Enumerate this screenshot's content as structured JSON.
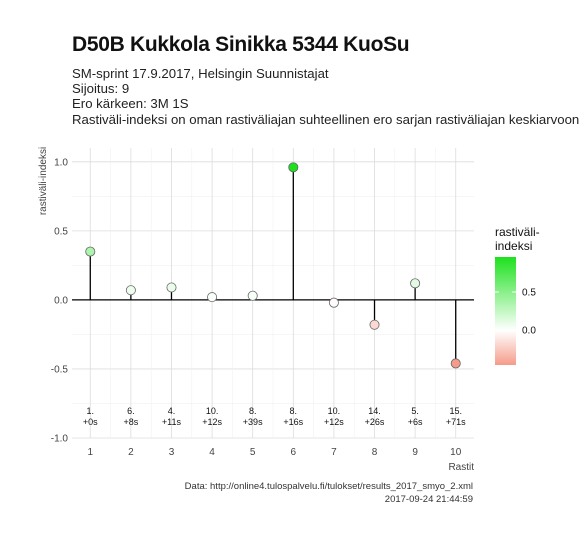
{
  "chart_data": {
    "type": "lollipop",
    "title": "D50B Kukkola Sinikka 5344 KuoSu",
    "subtitle_lines": [
      "SM-sprint 17.9.2017, Helsingin Suunnistajat",
      "Sijoitus: 9",
      "Ero kärkeen: 3M 1S",
      "Rastiväli-indeksi on oman rastiväliajan suhteellinen ero sarjan rastiväliajan keskiarvoon"
    ],
    "xlabel": "Rastit",
    "ylabel": "rastiväli-indeksi",
    "x_ticks": [
      "1",
      "2",
      "3",
      "4",
      "5",
      "6",
      "7",
      "8",
      "9",
      "10"
    ],
    "y_ticks": [
      "-1.0",
      "-0.5",
      "0.0",
      "0.5",
      "1.0"
    ],
    "ylim": [
      -1.0,
      1.1
    ],
    "grid": true,
    "x": [
      1,
      2,
      3,
      4,
      5,
      6,
      7,
      8,
      9,
      10
    ],
    "values": [
      0.35,
      0.07,
      0.09,
      0.02,
      0.03,
      0.96,
      -0.02,
      -0.18,
      0.12,
      -0.46
    ],
    "point_labels": [
      [
        "1.",
        "+0s"
      ],
      [
        "6.",
        "+8s"
      ],
      [
        "4.",
        "+11s"
      ],
      [
        "10.",
        "+12s"
      ],
      [
        "8.",
        "+39s"
      ],
      [
        "8.",
        "+16s"
      ],
      [
        "10.",
        "+12s"
      ],
      [
        "14.",
        "+26s"
      ],
      [
        "5.",
        "+6s"
      ],
      [
        "15.",
        "+71s"
      ]
    ],
    "legend": {
      "title_lines": [
        "rastiväli-",
        "indeksi"
      ],
      "ticks": [
        "0.5",
        "0.0"
      ],
      "tick_values": [
        0.5,
        0.0
      ],
      "range": [
        -0.46,
        0.96
      ],
      "colors": {
        "high": "#1ee11e",
        "mid": "#ffffff",
        "low": "#f59b8a"
      }
    }
  },
  "caption": {
    "source": "Data: http://online4.tulospalvelu.fi/tulokset/results_2017_smyo_2.xml",
    "timestamp": "2017-09-24 21:44:59"
  }
}
